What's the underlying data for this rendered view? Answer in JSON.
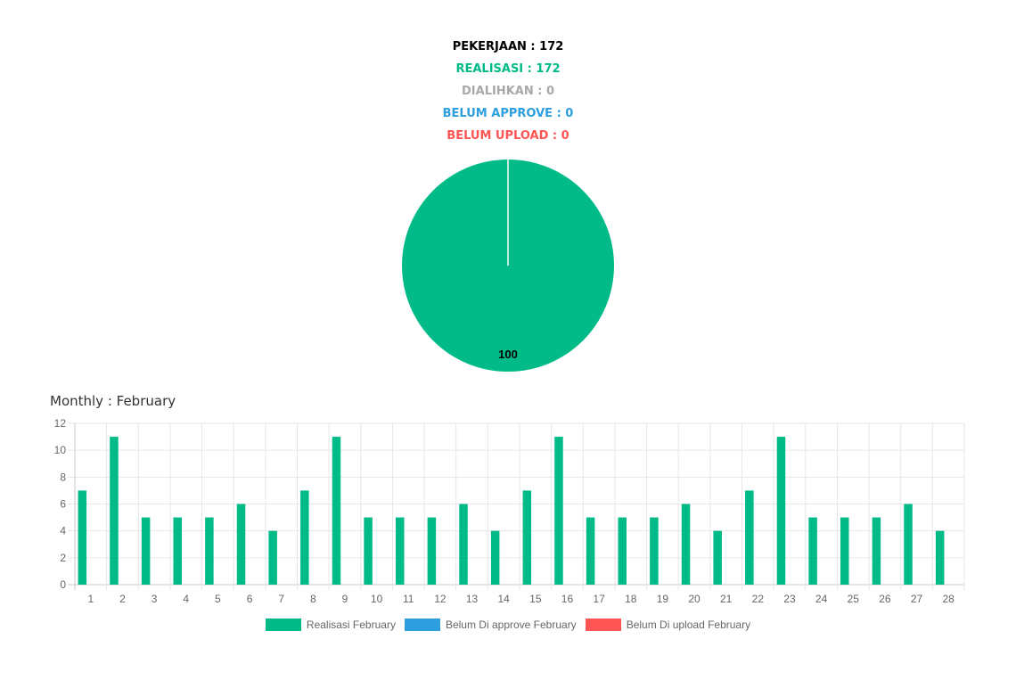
{
  "summary": {
    "pekerjaan": "PEKERJAAN : 172",
    "realisasi": "REALISASI : 172",
    "dialihkan": "DIALIHKAN : 0",
    "belum_approve": "BELUM APPROVE : 0",
    "belum_upload": "BELUM UPLOAD : 0"
  },
  "colors": {
    "realisasi": "#00bb88",
    "dialihkan": "#a8a8a8",
    "belum_approve": "#2e9fde",
    "belum_upload": "#ff5555"
  },
  "monthly_title": "Monthly : February",
  "legend": [
    {
      "label": "Realisasi February",
      "color": "#00bb88"
    },
    {
      "label": "Belum Di approve February",
      "color": "#2e9fde"
    },
    {
      "label": "Belum Di upload February",
      "color": "#ff5555"
    }
  ],
  "chart_data": [
    {
      "type": "pie",
      "labels": [
        "Realisasi"
      ],
      "values": [
        100
      ],
      "data_labels": [
        "100"
      ],
      "colors": [
        "#00bb88"
      ]
    },
    {
      "type": "bar",
      "title": "Monthly : February",
      "categories": [
        "1",
        "2",
        "3",
        "4",
        "5",
        "6",
        "7",
        "8",
        "9",
        "10",
        "11",
        "12",
        "13",
        "14",
        "15",
        "16",
        "17",
        "18",
        "19",
        "20",
        "21",
        "22",
        "23",
        "24",
        "25",
        "26",
        "27",
        "28"
      ],
      "series": [
        {
          "name": "Realisasi February",
          "color": "#00bb88",
          "values": [
            7,
            11,
            5,
            5,
            5,
            6,
            4,
            7,
            11,
            5,
            5,
            5,
            6,
            4,
            7,
            11,
            5,
            5,
            5,
            6,
            4,
            7,
            11,
            5,
            5,
            5,
            6,
            4
          ]
        },
        {
          "name": "Belum Di approve February",
          "color": "#2e9fde",
          "values": [
            0,
            0,
            0,
            0,
            0,
            0,
            0,
            0,
            0,
            0,
            0,
            0,
            0,
            0,
            0,
            0,
            0,
            0,
            0,
            0,
            0,
            0,
            0,
            0,
            0,
            0,
            0,
            0
          ]
        },
        {
          "name": "Belum Di upload February",
          "color": "#ff5555",
          "values": [
            0,
            0,
            0,
            0,
            0,
            0,
            0,
            0,
            0,
            0,
            0,
            0,
            0,
            0,
            0,
            0,
            0,
            0,
            0,
            0,
            0,
            0,
            0,
            0,
            0,
            0,
            0,
            0
          ]
        }
      ],
      "ylim": [
        0,
        12
      ],
      "yticks": [
        0,
        2,
        4,
        6,
        8,
        10,
        12
      ],
      "grid": true,
      "legend_position": "bottom"
    }
  ]
}
